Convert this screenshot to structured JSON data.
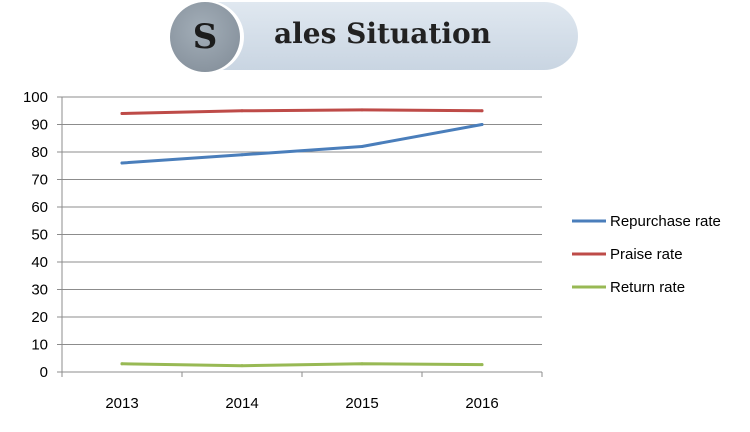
{
  "header": {
    "initial": "S",
    "rest": "ales Situation"
  },
  "chart_data": {
    "type": "line",
    "title": "Sales Situation",
    "categories": [
      "2013",
      "2014",
      "2015",
      "2016"
    ],
    "ylim": [
      0,
      100
    ],
    "yticks": [
      0,
      10,
      20,
      30,
      40,
      50,
      60,
      70,
      80,
      90,
      100
    ],
    "grid": true,
    "legend_position": "right",
    "series": [
      {
        "name": "Repurchase rate",
        "values": [
          76,
          79,
          82,
          90
        ],
        "color": "#4a7ebb"
      },
      {
        "name": "Praise rate",
        "values": [
          94,
          95,
          95.3,
          95
        ],
        "color": "#be4b48"
      },
      {
        "name": "Return rate",
        "values": [
          3,
          2.3,
          3,
          2.7
        ],
        "color": "#98b954"
      }
    ]
  }
}
